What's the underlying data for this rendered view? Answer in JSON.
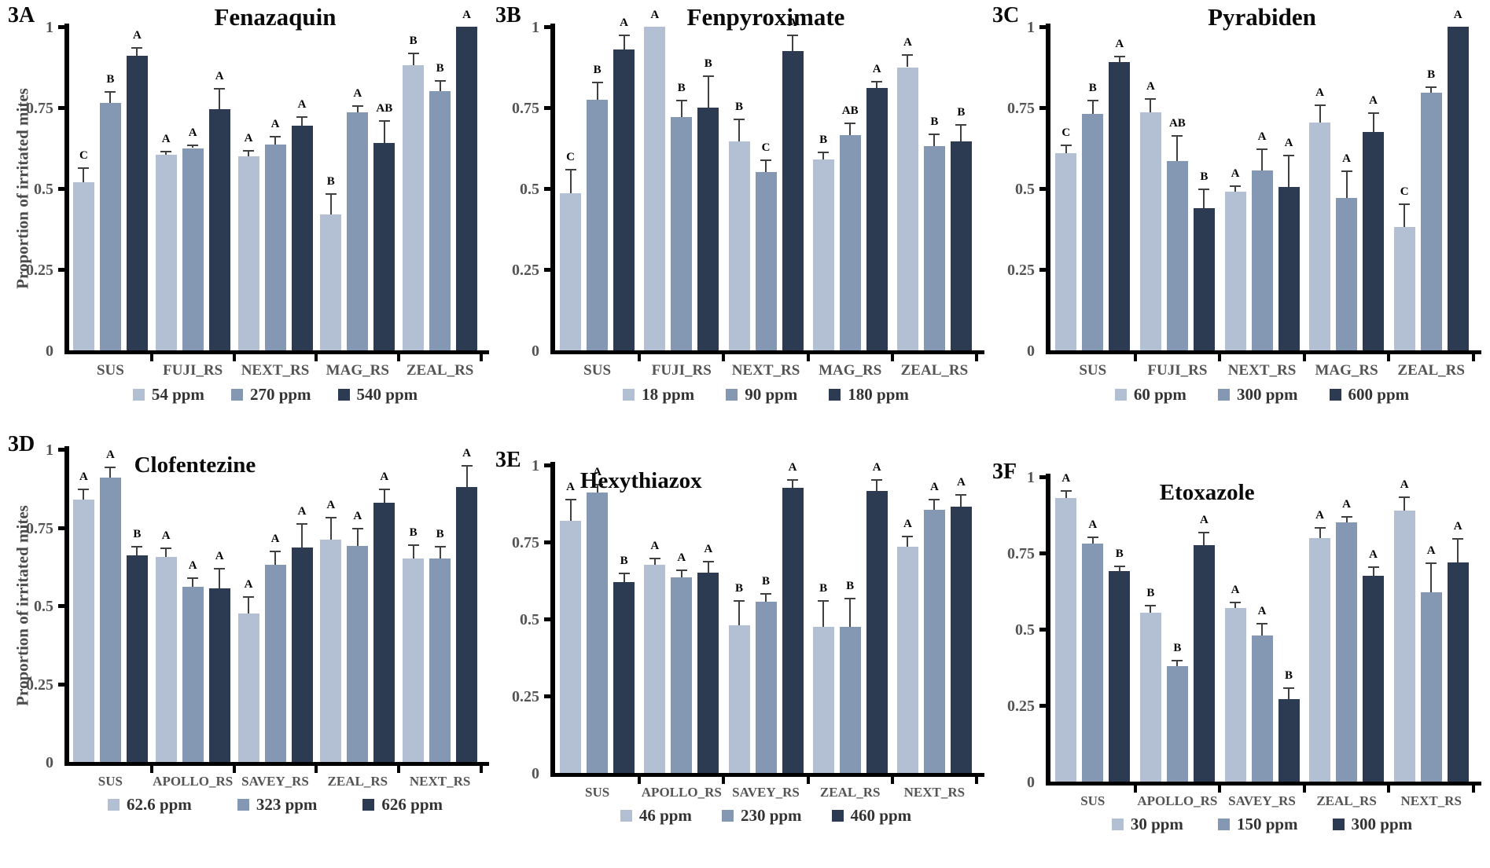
{
  "colors": {
    "series": [
      "#b3bfd3",
      "#8498b4",
      "#2c3a52"
    ],
    "axis": "#000000",
    "tick_label": "#545454",
    "error_bar": "#404040",
    "background": "#ffffff"
  },
  "y_axis": {
    "ylim": [
      0,
      1
    ],
    "ticks": [
      {
        "v": 1,
        "label": "1"
      },
      {
        "v": 0.75,
        "label": "0.75"
      },
      {
        "v": 0.5,
        "label": "0.5"
      },
      {
        "v": 0.25,
        "label": "0.25"
      },
      {
        "v": 0,
        "label": "0"
      }
    ]
  },
  "chart_data": [
    {
      "type": "bar",
      "panel": "3A",
      "title": "Fenazaquin",
      "ylabel": "Proportion of irritated mites",
      "ylim": [
        0,
        1
      ],
      "grid": false,
      "legend_position": "bottom",
      "categories": [
        "SUS",
        "FUJI_RS",
        "NEXT_RS",
        "MAG_RS",
        "ZEAL_RS"
      ],
      "series": [
        {
          "name": "54 ppm",
          "values": [
            0.52,
            0.605,
            0.6,
            0.42,
            0.88
          ],
          "errors": [
            0.045,
            0.012,
            0.02,
            0.065,
            0.04
          ],
          "letters": [
            "C",
            "A",
            "A",
            "B",
            "B"
          ]
        },
        {
          "name": "270 ppm",
          "values": [
            0.765,
            0.625,
            0.635,
            0.735,
            0.8
          ],
          "errors": [
            0.035,
            0.012,
            0.028,
            0.022,
            0.035
          ],
          "letters": [
            "B",
            "A",
            "A",
            "A",
            "B"
          ]
        },
        {
          "name": "540 ppm",
          "values": [
            0.91,
            0.745,
            0.695,
            0.64,
            1.0
          ],
          "errors": [
            0.028,
            0.065,
            0.028,
            0.07,
            0
          ],
          "letters": [
            "A",
            "A",
            "A",
            "AB",
            "A"
          ]
        }
      ]
    },
    {
      "type": "bar",
      "panel": "3B",
      "title": "Fenpyroximate",
      "ylim": [
        0,
        1
      ],
      "grid": false,
      "legend_position": "bottom",
      "categories": [
        "SUS",
        "FUJI_RS",
        "NEXT_RS",
        "MAG_RS",
        "ZEAL_RS"
      ],
      "series": [
        {
          "name": "18 ppm",
          "values": [
            0.485,
            1.0,
            0.645,
            0.59,
            0.875
          ],
          "errors": [
            0.075,
            0,
            0.07,
            0.025,
            0.04
          ],
          "letters": [
            "C",
            "A",
            "B",
            "B",
            "A"
          ]
        },
        {
          "name": "90 ppm",
          "values": [
            0.775,
            0.72,
            0.55,
            0.665,
            0.63
          ],
          "errors": [
            0.055,
            0.055,
            0.04,
            0.04,
            0.04
          ],
          "letters": [
            "B",
            "B",
            "C",
            "AB",
            "B"
          ]
        },
        {
          "name": "180 ppm",
          "values": [
            0.93,
            0.75,
            0.925,
            0.81,
            0.645
          ],
          "errors": [
            0.045,
            0.1,
            0.05,
            0.022,
            0.055
          ],
          "letters": [
            "A",
            "B",
            "A",
            "A",
            "B"
          ]
        }
      ]
    },
    {
      "type": "bar",
      "panel": "3C",
      "title": "Pyrabiden",
      "ylim": [
        0,
        1
      ],
      "grid": false,
      "legend_position": "bottom",
      "categories": [
        "SUS",
        "FUJI_RS",
        "NEXT_RS",
        "MAG_RS",
        "ZEAL_RS"
      ],
      "series": [
        {
          "name": "60 ppm",
          "values": [
            0.61,
            0.735,
            0.49,
            0.705,
            0.38
          ],
          "errors": [
            0.025,
            0.045,
            0.02,
            0.055,
            0.075
          ],
          "letters": [
            "C",
            "A",
            "A",
            "A",
            "C"
          ]
        },
        {
          "name": "300 ppm",
          "values": [
            0.73,
            0.585,
            0.555,
            0.47,
            0.795
          ],
          "errors": [
            0.045,
            0.08,
            0.07,
            0.085,
            0.02
          ],
          "letters": [
            "B",
            "AB",
            "A",
            "A",
            "B"
          ]
        },
        {
          "name": "600 ppm",
          "values": [
            0.89,
            0.44,
            0.505,
            0.675,
            1.0
          ],
          "errors": [
            0.02,
            0.06,
            0.1,
            0.06,
            0
          ],
          "letters": [
            "A",
            "B",
            "A",
            "A",
            "A"
          ]
        }
      ]
    },
    {
      "type": "bar",
      "panel": "3D",
      "title": "Clofentezine",
      "ylabel": "Proportion of irritated mites",
      "ylim": [
        0,
        1
      ],
      "grid": false,
      "legend_position": "bottom",
      "categories": [
        "SUS",
        "APOLLO_RS",
        "SAVEY_RS",
        "ZEAL_RS",
        "NEXT_RS"
      ],
      "series": [
        {
          "name": "62.6 ppm",
          "values": [
            0.84,
            0.655,
            0.475,
            0.71,
            0.65
          ],
          "errors": [
            0.035,
            0.03,
            0.055,
            0.075,
            0.045
          ],
          "letters": [
            "A",
            "A",
            "A",
            "A",
            "B"
          ]
        },
        {
          "name": "323 ppm",
          "values": [
            0.91,
            0.56,
            0.63,
            0.69,
            0.65
          ],
          "errors": [
            0.035,
            0.03,
            0.045,
            0.06,
            0.04
          ],
          "letters": [
            "A",
            "A",
            "A",
            "A",
            "B"
          ]
        },
        {
          "name": "626 ppm",
          "values": [
            0.66,
            0.555,
            0.685,
            0.83,
            0.88
          ],
          "errors": [
            0.03,
            0.065,
            0.08,
            0.045,
            0.07
          ],
          "letters": [
            "B",
            "A",
            "A",
            "A",
            "A"
          ]
        }
      ]
    },
    {
      "type": "bar",
      "panel": "3E",
      "title": "Hexythiazox",
      "ylim": [
        0,
        1
      ],
      "grid": false,
      "legend_position": "bottom",
      "categories": [
        "SUS",
        "APOLLO_RS",
        "SAVEY_RS",
        "ZEAL_RS",
        "NEXT_RS"
      ],
      "series": [
        {
          "name": "46 ppm",
          "values": [
            0.82,
            0.675,
            0.48,
            0.475,
            0.735
          ],
          "errors": [
            0.07,
            0.025,
            0.08,
            0.085,
            0.035
          ],
          "letters": [
            "A",
            "A",
            "B",
            "B",
            "A"
          ]
        },
        {
          "name": "230 ppm",
          "values": [
            0.91,
            0.635,
            0.555,
            0.475,
            0.855
          ],
          "errors": [
            0.03,
            0.025,
            0.03,
            0.095,
            0.035
          ],
          "letters": [
            "A",
            "A",
            "B",
            "B",
            "A"
          ]
        },
        {
          "name": "460 ppm",
          "values": [
            0.62,
            0.65,
            0.925,
            0.915,
            0.865
          ],
          "errors": [
            0.03,
            0.04,
            0.03,
            0.04,
            0.04
          ],
          "letters": [
            "B",
            "A",
            "A",
            "A",
            "A"
          ]
        }
      ]
    },
    {
      "type": "bar",
      "panel": "3F",
      "title": "Etoxazole",
      "ylim": [
        0,
        1
      ],
      "grid": false,
      "legend_position": "bottom",
      "categories": [
        "SUS",
        "APOLLO_RS",
        "SAVEY_RS",
        "ZEAL_RS",
        "NEXT_RS"
      ],
      "series": [
        {
          "name": "30 ppm",
          "values": [
            0.93,
            0.555,
            0.57,
            0.8,
            0.89
          ],
          "errors": [
            0.025,
            0.025,
            0.02,
            0.035,
            0.045
          ],
          "letters": [
            "A",
            "B",
            "A",
            "A",
            "A"
          ]
        },
        {
          "name": "150 ppm",
          "values": [
            0.78,
            0.38,
            0.48,
            0.85,
            0.62
          ],
          "errors": [
            0.025,
            0.02,
            0.04,
            0.02,
            0.1
          ],
          "letters": [
            "A",
            "B",
            "A",
            "A",
            "A"
          ]
        },
        {
          "name": "300 ppm",
          "values": [
            0.69,
            0.775,
            0.27,
            0.675,
            0.72
          ],
          "errors": [
            0.02,
            0.045,
            0.04,
            0.03,
            0.08
          ],
          "letters": [
            "B",
            "A",
            "B",
            "A",
            "A"
          ]
        }
      ]
    }
  ]
}
